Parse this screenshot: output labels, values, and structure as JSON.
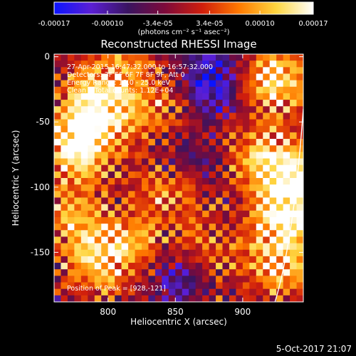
{
  "chart_data": {
    "type": "heatmap",
    "title": "Reconstructed RHESSI Image",
    "xlabel": "Heliocentric X (arcsec)",
    "ylabel": "Heliocentric Y (arcsec)",
    "xlim": [
      760,
      945
    ],
    "ylim": [
      -188,
      2
    ],
    "x_ticks": [
      "800",
      "850",
      "900"
    ],
    "x_tick_values": [
      800,
      850,
      900
    ],
    "y_ticks": [
      "0",
      "-50",
      "-100",
      "-150"
    ],
    "y_tick_values": [
      0,
      -50,
      -100,
      -150
    ],
    "colorbar": {
      "range": [
        -0.00017,
        0.00017
      ],
      "tick_labels": [
        "-0.00017",
        "-0.00010",
        "-3.4e-05",
        "3.4e-05",
        "0.00010",
        "0.00017"
      ],
      "tick_values": [
        -0.00017,
        -0.0001,
        -3.4e-05,
        3.4e-05,
        0.0001,
        0.00017
      ],
      "units": "(photons cm⁻² s⁻¹ asec⁻²)",
      "colors": [
        "#0b14ff",
        "#5b1fd4",
        "#3a1460",
        "#7e0a3a",
        "#d01e0c",
        "#ff7a00",
        "#ffd640",
        "#ffffff"
      ]
    },
    "annotations": [
      "27-Apr-2015 16:47:32.000 to 16:57:32.000",
      "Detectors: 3F 5F 6F 7F 8F 9F, Att 0",
      "Energy Range: 12.0 - 25.0 keV",
      "Clean    Total counts: 1.12E+04"
    ],
    "peak_label": "Position of Peak = [928,-121]",
    "peak": [
      928,
      -121
    ],
    "hotspots": [
      {
        "x": 790,
        "y": -45,
        "value": 0.00017
      },
      {
        "x": 775,
        "y": -70,
        "value": 0.00014
      },
      {
        "x": 790,
        "y": -155,
        "value": 0.00012
      },
      {
        "x": 820,
        "y": -150,
        "value": 0.0001
      },
      {
        "x": 770,
        "y": -120,
        "value": 0.0001
      },
      {
        "x": 840,
        "y": -40,
        "value": 9e-05
      },
      {
        "x": 845,
        "y": -105,
        "value": 9e-05
      },
      {
        "x": 805,
        "y": -10,
        "value": 0.0001
      },
      {
        "x": 870,
        "y": -150,
        "value": 0.0001
      },
      {
        "x": 928,
        "y": -121,
        "value": 0.00017
      },
      {
        "x": 935,
        "y": -90,
        "value": 0.00014
      },
      {
        "x": 930,
        "y": -160,
        "value": 0.00012
      },
      {
        "x": 910,
        "y": -80,
        "value": 0.0001
      },
      {
        "x": 915,
        "y": -25,
        "value": 9e-05
      },
      {
        "x": 930,
        "y": -10,
        "value": 0.00011
      }
    ],
    "coldspots": [
      {
        "x": 880,
        "y": -20,
        "value": -0.00015
      },
      {
        "x": 850,
        "y": -165,
        "value": -0.00012
      },
      {
        "x": 905,
        "y": -110,
        "value": -6e-05
      },
      {
        "x": 860,
        "y": -75,
        "value": -6e-05
      }
    ]
  },
  "footer": {
    "date": "5-Oct-2017 21:07"
  }
}
